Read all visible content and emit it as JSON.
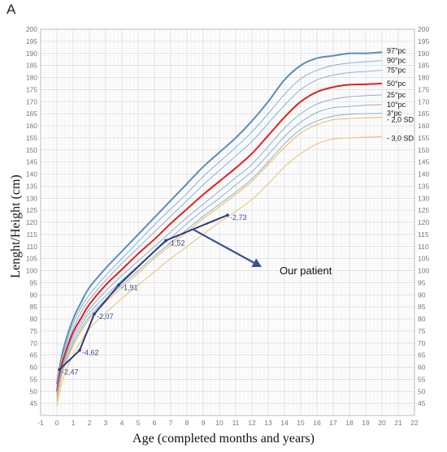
{
  "panel_label": "A",
  "chart_data": {
    "type": "line",
    "title": "",
    "xlabel": "Age (completed months and years)",
    "ylabel": "Lenght/Height (cm)",
    "xlim": [
      -1,
      22
    ],
    "ylim": [
      40,
      200
    ],
    "grid": true,
    "x_ticks": [
      -1,
      0,
      1,
      2,
      3,
      4,
      5,
      6,
      7,
      8,
      9,
      10,
      11,
      12,
      13,
      14,
      15,
      16,
      17,
      18,
      19,
      20,
      21,
      22
    ],
    "y_ticks": [
      45,
      50,
      55,
      60,
      65,
      70,
      75,
      80,
      85,
      90,
      95,
      100,
      105,
      110,
      115,
      120,
      125,
      130,
      135,
      140,
      145,
      150,
      155,
      160,
      165,
      170,
      175,
      180,
      185,
      190,
      195,
      200
    ],
    "x": [
      0,
      0.25,
      0.5,
      1,
      1.5,
      2,
      3,
      4,
      5,
      6,
      7,
      8,
      9,
      10,
      11,
      12,
      13,
      14,
      15,
      16,
      17,
      18,
      19,
      20
    ],
    "series": [
      {
        "name": "97°pc",
        "color": "#5b8db8",
        "width": 2,
        "values": [
          53,
          63,
          70,
          80,
          87,
          93,
          101,
          108,
          115,
          122,
          129,
          136,
          143,
          149,
          155,
          162,
          170,
          179,
          185,
          188,
          189,
          190,
          190,
          190.5
        ]
      },
      {
        "name": "90°pc",
        "color": "#8ab0d0",
        "width": 1,
        "values": [
          52,
          62,
          68,
          78,
          85,
          90,
          98,
          105,
          112,
          119,
          125.5,
          132,
          139,
          145,
          151,
          157.5,
          165,
          173,
          179.5,
          183,
          185,
          186,
          186.5,
          187
        ]
      },
      {
        "name": "75°pc",
        "color": "#8ab0d0",
        "width": 1,
        "values": [
          51,
          60.5,
          66.5,
          76,
          83,
          88,
          96,
          103,
          109.5,
          116,
          122.5,
          129,
          135.5,
          141.5,
          147.5,
          153.5,
          161,
          168.5,
          175,
          179,
          181,
          182,
          182.5,
          183
        ]
      },
      {
        "name": "50°pc",
        "color": "#e02020",
        "width": 2,
        "values": [
          50,
          59.5,
          65.5,
          74.5,
          80.5,
          86,
          94,
          100.5,
          107,
          113,
          119.5,
          125.5,
          131.5,
          137,
          142.5,
          148.5,
          156,
          163.5,
          170,
          174,
          176,
          177,
          177.2,
          177.5
        ]
      },
      {
        "name": "25°pc",
        "color": "#8ab0d0",
        "width": 1,
        "values": [
          49,
          58,
          64,
          73,
          79,
          84,
          91.5,
          98,
          104,
          110,
          116,
          122,
          127.5,
          133,
          138.5,
          144,
          151.5,
          159,
          165,
          169,
          171,
          172,
          172.5,
          172.8
        ]
      },
      {
        "name": "10°pc",
        "color": "#8ab0d0",
        "width": 1,
        "values": [
          48,
          57,
          63,
          71.5,
          77.5,
          82.5,
          89.5,
          96,
          102,
          108,
          113.5,
          119.5,
          125,
          130,
          135.5,
          141,
          148,
          155.5,
          161.5,
          165.5,
          167.5,
          168,
          168.5,
          168.8
        ]
      },
      {
        "name": "3°pc",
        "color": "#8ab0d0",
        "width": 1,
        "values": [
          47,
          56,
          61.5,
          70,
          76,
          81,
          88,
          94,
          100,
          106,
          111.5,
          117,
          122.5,
          127.5,
          132.5,
          138,
          145,
          152.5,
          158.5,
          162,
          164,
          164.8,
          165,
          165.2
        ]
      },
      {
        "name": "- 2,0 SD",
        "color": "#e8b860",
        "width": 1,
        "values": [
          46,
          55,
          61,
          69,
          75,
          80,
          87,
          93,
          99,
          105,
          110.5,
          116,
          121.5,
          126.5,
          131.5,
          137,
          144,
          151,
          157,
          160.5,
          162.5,
          163,
          163.3,
          163.5
        ]
      },
      {
        "name": "- 3,0 SD",
        "color": "#e8c070",
        "width": 1,
        "values": [
          44,
          52,
          57.5,
          65,
          71,
          76,
          82.5,
          88.5,
          94,
          99.5,
          105,
          110,
          115,
          120,
          124.5,
          129.5,
          136,
          143,
          148.5,
          152.5,
          154.5,
          155,
          155.3,
          155.5
        ]
      }
    ],
    "patient": {
      "color": "#2f3c7a",
      "points": [
        {
          "x": 0.15,
          "y": 59,
          "label": "-2,47"
        },
        {
          "x": 1.4,
          "y": 67,
          "label": "-4,62"
        },
        {
          "x": 2.3,
          "y": 82,
          "label": "-2,07"
        },
        {
          "x": 3.8,
          "y": 94,
          "label": "-1,91"
        },
        {
          "x": 6.7,
          "y": 112.5,
          "label": "-1,52"
        },
        {
          "x": 10.5,
          "y": 123,
          "label": "-2,73"
        }
      ]
    },
    "annotation": {
      "text": "Our patient",
      "arrow_from": [
        8.4,
        117
      ],
      "arrow_to": [
        12.6,
        101.5
      ],
      "text_x": 13.7,
      "text_y": 98.5
    }
  }
}
